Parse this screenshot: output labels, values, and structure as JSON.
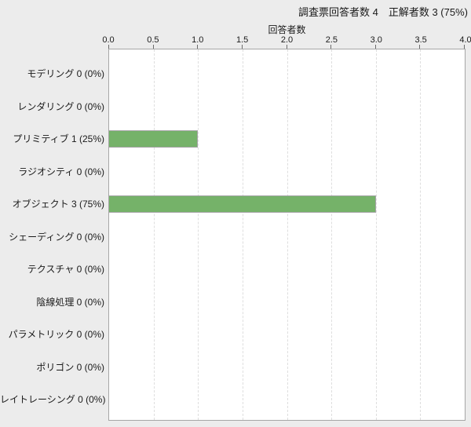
{
  "header": {
    "title": "調査票回答者数 4　正解者数 3 (75%)",
    "respondent_count": 4,
    "correct_count": 3,
    "correct_percent": "75%"
  },
  "colors": {
    "background": "#ececec",
    "plot_background": "#ffffff",
    "plot_border": "#a6a6a6",
    "gridline": "#dedede",
    "bar_fill": "#75b269",
    "bar_border": "#a3a3a3",
    "text": "#1a1a1a"
  },
  "chart_data": {
    "type": "bar",
    "orientation": "horizontal",
    "title": "調査票回答者数 4　正解者数 3 (75%)",
    "xlabel": "回答者数",
    "ylabel": "",
    "xlim": [
      0,
      4
    ],
    "xticks": [
      "0.0",
      "0.5",
      "1.0",
      "1.5",
      "2.0",
      "2.5",
      "3.0",
      "3.5",
      "4.0"
    ],
    "grid": "vertical-dashed",
    "legend": "none",
    "categories": [
      "モデリング",
      "レンダリング",
      "プリミティブ",
      "ラジオシティ",
      "オブジェクト",
      "シェーディング",
      "テクスチャ",
      "陰線処理",
      "パラメトリック",
      "ポリゴン",
      "レイトレーシング"
    ],
    "values": [
      0,
      0,
      1,
      0,
      3,
      0,
      0,
      0,
      0,
      0,
      0
    ],
    "percents": [
      "0%",
      "0%",
      "25%",
      "0%",
      "75%",
      "0%",
      "0%",
      "0%",
      "0%",
      "0%",
      "0%"
    ],
    "display_labels": [
      "モデリング 0 (0%)",
      "レンダリング 0 (0%)",
      "プリミティブ 1 (25%)",
      "ラジオシティ 0 (0%)",
      "オブジェクト 3 (75%)",
      "シェーディング 0 (0%)",
      "テクスチャ 0 (0%)",
      "陰線処理 0 (0%)",
      "パラメトリック 0 (0%)",
      "ポリゴン 0 (0%)",
      "レイトレーシング 0 (0%)"
    ]
  }
}
